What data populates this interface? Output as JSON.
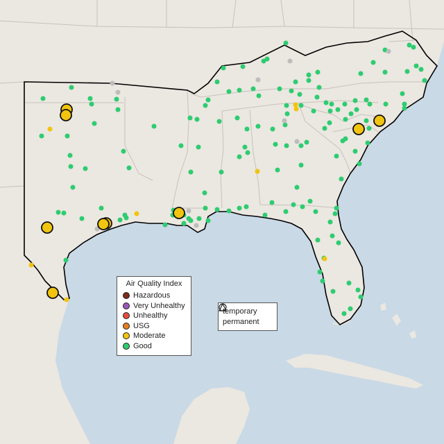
{
  "map": {
    "colors": {
      "water": "#c9d9e6",
      "land": "#ebe7e1",
      "state_border": "#c8c2ba",
      "region_outline": "#000000",
      "mountain": "#e0dbd3"
    }
  },
  "legend": {
    "title": "Air Quality Index",
    "items": [
      {
        "label": "Hazardous",
        "color": "#7e2a1c"
      },
      {
        "label": "Very Unhealthy",
        "color": "#9b59b6"
      },
      {
        "label": "Unhealthy",
        "color": "#e74c3c"
      },
      {
        "label": "USG",
        "color": "#e67e22"
      },
      {
        "label": "Moderate",
        "color": "#f1c40f"
      },
      {
        "label": "Good",
        "color": "#2ecc71"
      }
    ]
  },
  "monitor_legend": {
    "items": [
      {
        "label": "temporary",
        "shape": "circle"
      },
      {
        "label": "permanent",
        "shape": "triangle"
      }
    ]
  },
  "no_data_color": "#bdbdbd"
}
